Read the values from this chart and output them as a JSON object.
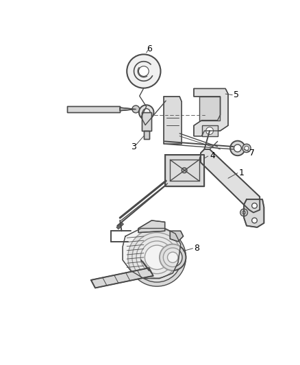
{
  "background_color": "#ffffff",
  "line_color": "#4a4a4a",
  "label_color": "#000000",
  "fig_width": 4.38,
  "fig_height": 5.33,
  "dpi": 100,
  "label_fontsize": 9
}
